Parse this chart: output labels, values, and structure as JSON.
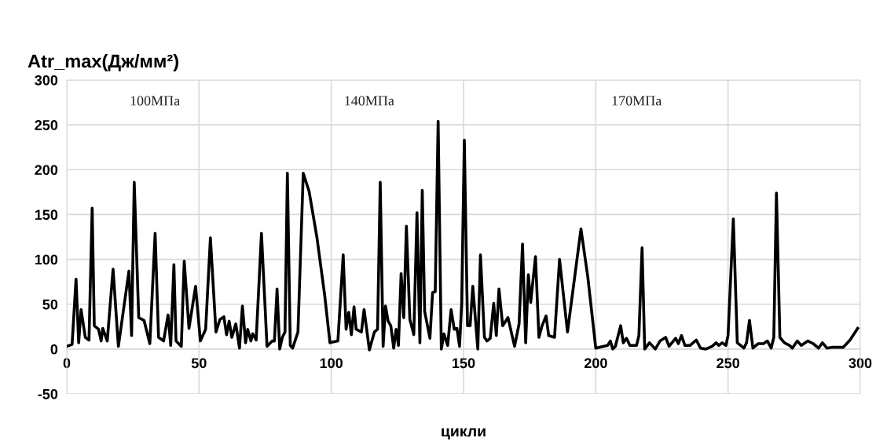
{
  "chart_data": {
    "type": "line",
    "title": "Atr_max(Дж/мм²)",
    "xlabel": "цикли",
    "x": [
      0,
      2,
      3.5,
      4.5,
      5.4,
      7,
      8.4,
      9.6,
      10.4,
      12,
      13,
      13.6,
      15.3,
      17.5,
      19.5,
      21.5,
      23.5,
      24.5,
      25.5,
      27.2,
      29.2,
      31.4,
      33.4,
      34.7,
      36.6,
      38.3,
      39.3,
      40.5,
      41.3,
      43.3,
      44.4,
      46.2,
      48.7,
      50.5,
      52.5,
      54.3,
      56.4,
      57.9,
      59.4,
      60.4,
      61.4,
      62.4,
      63.9,
      65.3,
      66.4,
      67.6,
      68.4,
      69.6,
      70.3,
      71.6,
      73.6,
      75.7,
      77.7,
      78.5,
      79.5,
      80.5,
      81.5,
      82.5,
      83.4,
      84.5,
      85.4,
      87.4,
      89.4,
      91.6,
      94.6,
      97.5,
      99.5,
      102.5,
      104.5,
      105.6,
      106.6,
      107.6,
      108.6,
      109.4,
      111.4,
      112.4,
      114.4,
      116.3,
      117.5,
      118.5,
      119.6,
      120.5,
      121.5,
      122.5,
      123.6,
      124.5,
      125.4,
      126.4,
      127.4,
      128.4,
      129.7,
      131.2,
      132.4,
      133.5,
      134.4,
      135.3,
      137.3,
      138.3,
      139.3,
      140.4,
      141.6,
      142.6,
      144,
      145.3,
      146.5,
      147.5,
      148.5,
      149.3,
      150.3,
      151.5,
      152.5,
      153.5,
      155.4,
      156.4,
      157.9,
      158.9,
      160.1,
      161.4,
      162.4,
      163.4,
      164.8,
      166.8,
      169.3,
      171,
      172.3,
      173.5,
      174.5,
      175.4,
      177.2,
      178.5,
      179.7,
      181.2,
      182.2,
      184.4,
      186.3,
      189.3,
      194.4,
      197,
      200,
      204.5,
      205.5,
      206.4,
      207.4,
      209.4,
      210.4,
      211.6,
      212.9,
      215.4,
      216.3,
      217.5,
      218.5,
      220.3,
      222.5,
      224.3,
      226.4,
      227.7,
      230.2,
      231.2,
      232.4,
      233.7,
      235.6,
      238,
      239.6,
      241.6,
      244,
      245.5,
      246.5,
      247.8,
      249.2,
      250,
      252,
      253.5,
      256,
      257,
      258.1,
      259.4,
      261.4,
      263.4,
      264.9,
      266.3,
      267.3,
      268.3,
      269.6,
      271.3,
      273.3,
      274.3,
      276.2,
      277.7,
      280.2,
      282.2,
      284.2,
      285.7,
      287.4,
      289.6,
      293.6,
      296.1,
      299
    ],
    "series": [
      {
        "color": "#000000",
        "values": [
          3,
          5,
          78,
          7,
          44,
          13,
          10,
          157,
          26,
          22,
          9,
          23,
          9,
          89,
          3,
          45,
          87,
          15,
          186,
          35,
          32,
          6,
          129,
          13,
          9,
          38,
          4,
          94,
          9,
          3,
          98,
          23,
          70,
          9,
          22,
          124,
          19,
          33,
          36,
          16,
          31,
          13,
          28,
          1,
          48,
          7,
          22,
          9,
          17,
          10,
          129,
          3,
          9,
          9,
          67,
          0,
          13,
          19,
          196,
          4,
          1,
          19,
          196,
          176,
          124,
          60,
          7,
          9,
          105,
          22,
          41,
          16,
          47,
          22,
          19,
          44,
          -1,
          19,
          22,
          186,
          3,
          48,
          31,
          26,
          1,
          22,
          4,
          84,
          35,
          137,
          33,
          16,
          152,
          7,
          177,
          42,
          12,
          63,
          64,
          254,
          0,
          17,
          4,
          44,
          22,
          23,
          3,
          51,
          233,
          26,
          26,
          70,
          0,
          105,
          13,
          9,
          12,
          51,
          15,
          67,
          26,
          35,
          3,
          28,
          117,
          7,
          83,
          52,
          103,
          13,
          26,
          37,
          15,
          13,
          100,
          19,
          134,
          80,
          1,
          4,
          9,
          0,
          3,
          26,
          7,
          12,
          4,
          4,
          15,
          113,
          0,
          7,
          0,
          9,
          13,
          3,
          12,
          6,
          15,
          4,
          4,
          10,
          1,
          0,
          3,
          7,
          4,
          7,
          4,
          15,
          145,
          7,
          1,
          7,
          32,
          1,
          6,
          6,
          9,
          1,
          13,
          174,
          13,
          7,
          4,
          1,
          9,
          4,
          9,
          6,
          1,
          7,
          1,
          2,
          2,
          10,
          23
        ]
      }
    ],
    "xlim": [
      0,
      300
    ],
    "xticks": [
      0,
      50,
      100,
      150,
      200,
      250,
      300
    ],
    "ylim": [
      -50,
      300
    ],
    "yticks": [
      -50,
      0,
      50,
      100,
      150,
      200,
      250,
      300
    ],
    "grid": true,
    "marker": "none",
    "line_style": "solid",
    "annotations": [
      "100МПа",
      "140МПа",
      "170МПа"
    ]
  }
}
